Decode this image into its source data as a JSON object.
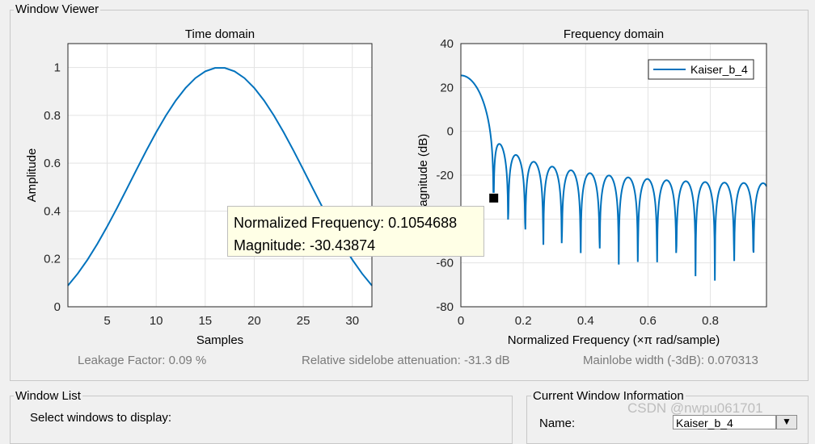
{
  "window_viewer": {
    "title": "Window Viewer",
    "stats": {
      "leakage": "Leakage Factor: 0.09 %",
      "sidelobe": "Relative sidelobe attenuation: -31.3 dB",
      "mainlobe": "Mainlobe width (-3dB): 0.070313"
    }
  },
  "tooltip": {
    "line1": "Normalized Frequency: 0.1054688",
    "line2": "Magnitude: -30.43874"
  },
  "window_list": {
    "title": "Window List",
    "prompt": "Select windows to display:"
  },
  "current_window": {
    "title": "Current Window Information",
    "name_label": "Name:",
    "name_value": "Kaiser_b_4"
  },
  "watermark": "CSDN @nwpu061701",
  "colors": {
    "line": "#0072bd",
    "grid": "#e3e3e3",
    "axis": "#262626"
  },
  "chart_data": [
    {
      "type": "line",
      "title": "Time domain",
      "xlabel": "Samples",
      "ylabel": "Amplitude",
      "xlim": [
        1,
        32
      ],
      "ylim": [
        0,
        1.1
      ],
      "xticks": [
        5,
        10,
        15,
        20,
        25,
        30
      ],
      "yticks": [
        0,
        0.2,
        0.4,
        0.6,
        0.8,
        1
      ],
      "ytick_labels": [
        "0",
        "0.2",
        "0.4",
        "0.6",
        "0.8",
        "1"
      ],
      "series": [
        {
          "name": "Kaiser_b_4",
          "window": "kaiser",
          "length": 32,
          "beta": 4,
          "note": "values w[n] = I0(beta*sqrt(1-(2n/31-1)^2))/I0(beta), n = 0..31"
        }
      ]
    },
    {
      "type": "line",
      "title": "Frequency domain",
      "xlabel": "Normalized Frequency  (×π rad/sample)",
      "ylabel": "Magnitude (dB)",
      "xlim": [
        0,
        0.98
      ],
      "ylim": [
        -80,
        40
      ],
      "xticks": [
        0,
        0.2,
        0.4,
        0.6,
        0.8
      ],
      "xtick_labels": [
        "0",
        "0.2",
        "0.4",
        "0.6",
        "0.8"
      ],
      "yticks": [
        -80,
        -60,
        -40,
        -20,
        0,
        20,
        40
      ],
      "ytick_labels": [
        "-80",
        "-60",
        "-40",
        "-20",
        "0",
        "20",
        "40"
      ],
      "legend": {
        "position": "top-right",
        "entries": [
          "Kaiser_b_4"
        ]
      },
      "data_cursor": {
        "x": 0.1054688,
        "y": -30.43874
      },
      "series": [
        {
          "name": "Kaiser_b_4",
          "note": "20*log10|DTFT of Kaiser_b_4|, peak ≈ 25.3 dB at 0"
        }
      ]
    }
  ]
}
